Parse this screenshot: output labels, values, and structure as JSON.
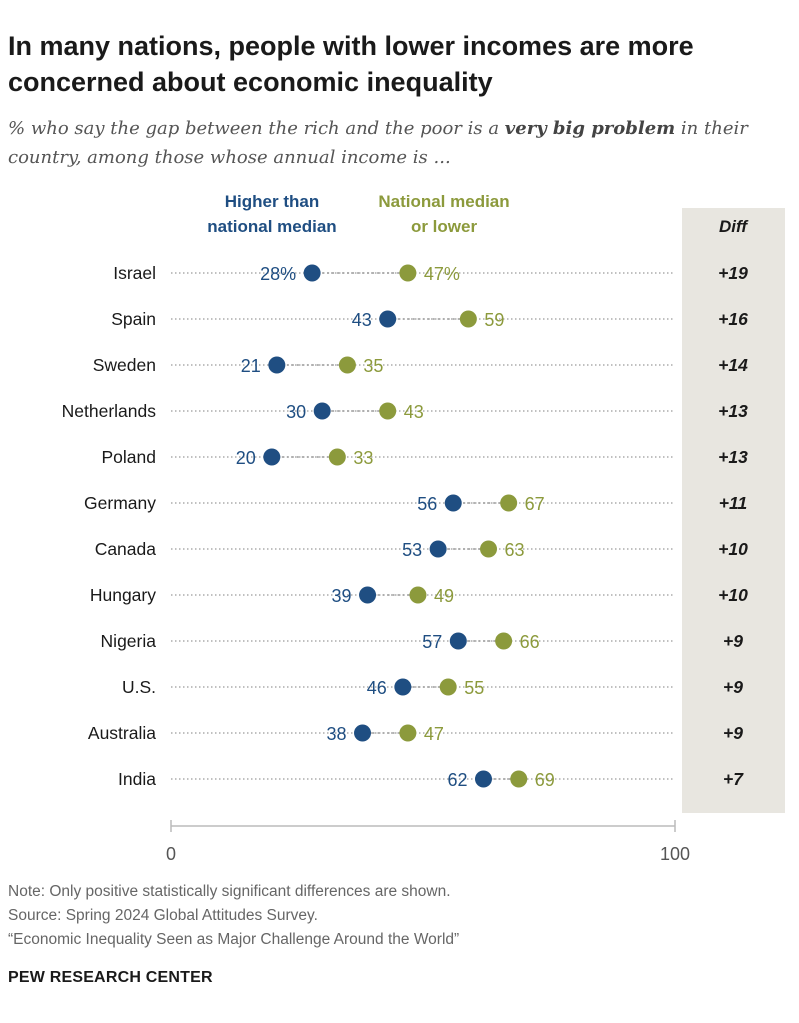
{
  "title": "In many nations, people with lower incomes are more concerned about economic inequality",
  "subtitle": {
    "before": "% who say the gap between the rich and the poor is a ",
    "emphasis": "very big problem",
    "after": " in their country, among those whose annual income is ..."
  },
  "footer": {
    "note": "Note: Only positive statistically significant differences are shown.",
    "source": "Source: Spring 2024 Global Attitudes Survey.",
    "report": "“Economic Inequality Seen as Major Challenge Around the World”",
    "brand": "PEW RESEARCH CENTER"
  },
  "chart_data": {
    "type": "dot",
    "legend": {
      "higher": [
        "Higher than",
        "national median"
      ],
      "lower": [
        "National median",
        "or lower"
      ]
    },
    "diff_header": "Diff",
    "colors": {
      "higher": "#1f4e82",
      "lower": "#8c9a3c",
      "diff_bg": "#e8e6e0"
    },
    "xlim": [
      0,
      100
    ],
    "xticks": [
      0,
      100
    ],
    "categories": [
      "Israel",
      "Spain",
      "Sweden",
      "Netherlands",
      "Poland",
      "Germany",
      "Canada",
      "Hungary",
      "Nigeria",
      "U.S.",
      "Australia",
      "India"
    ],
    "series": [
      {
        "name": "Higher than national median",
        "key": "higher",
        "values": [
          28,
          43,
          21,
          30,
          20,
          56,
          53,
          39,
          57,
          46,
          38,
          62
        ],
        "first_suffix": "%"
      },
      {
        "name": "National median or lower",
        "key": "lower",
        "values": [
          47,
          59,
          35,
          43,
          33,
          67,
          63,
          49,
          66,
          55,
          47,
          69
        ],
        "first_suffix": "%"
      }
    ],
    "diff": [
      "+19",
      "+16",
      "+14",
      "+13",
      "+13",
      "+11",
      "+10",
      "+10",
      "+9",
      "+9",
      "+9",
      "+7"
    ]
  }
}
